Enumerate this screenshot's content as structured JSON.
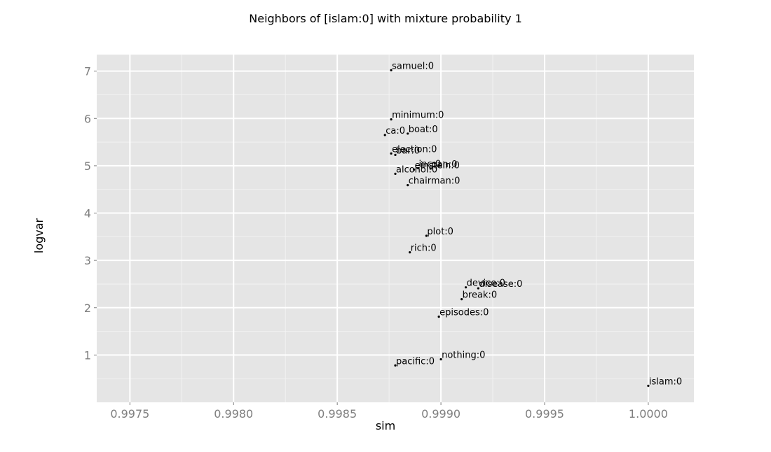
{
  "chart_data": {
    "type": "scatter",
    "title": "Neighbors of [islam:0] with mixture probability 1",
    "xlabel": "sim",
    "ylabel": "logvar",
    "xlim": [
      0.99734,
      1.00022
    ],
    "ylim": [
      0.0,
      7.35
    ],
    "x_ticks": [
      0.9975,
      0.998,
      0.9985,
      0.999,
      0.9995,
      1.0
    ],
    "x_tick_labels": [
      "0.9975",
      "0.9980",
      "0.9985",
      "0.9990",
      "0.9995",
      "1.0000"
    ],
    "y_ticks": [
      1,
      2,
      3,
      4,
      5,
      6,
      7
    ],
    "y_tick_labels": [
      "1",
      "2",
      "3",
      "4",
      "5",
      "6",
      "7"
    ],
    "grid": true,
    "colors": {
      "panel": "#e5e5e5",
      "grid_major": "#ffffff",
      "grid_minor": "#f2f2f2",
      "point": "#000000",
      "tick_text": "#7f7f7f"
    },
    "points": [
      {
        "label": "samuel:0",
        "x": 0.99876,
        "y": 7.02
      },
      {
        "label": "minimum:0",
        "x": 0.99876,
        "y": 5.98
      },
      {
        "label": "ca:0",
        "x": 0.99873,
        "y": 5.65
      },
      {
        "label": "boat:0",
        "x": 0.99884,
        "y": 5.68
      },
      {
        "label": "election:0",
        "x": 0.99876,
        "y": 5.26
      },
      {
        "label": "bar:0",
        "x": 0.99878,
        "y": 5.23
      },
      {
        "label": "inc:0",
        "x": 0.99889,
        "y": 4.95
      },
      {
        "label": "einstein:0",
        "x": 0.99887,
        "y": 4.92
      },
      {
        "label": "pan:0",
        "x": 0.99895,
        "y": 4.94
      },
      {
        "label": "alcohol:0",
        "x": 0.99878,
        "y": 4.83
      },
      {
        "label": "chairman:0",
        "x": 0.99884,
        "y": 4.59
      },
      {
        "label": "plot:0",
        "x": 0.99893,
        "y": 3.52
      },
      {
        "label": "rich:0",
        "x": 0.99885,
        "y": 3.17
      },
      {
        "label": "device:0",
        "x": 0.99912,
        "y": 2.43
      },
      {
        "label": "disease:0",
        "x": 0.99918,
        "y": 2.41
      },
      {
        "label": "break:0",
        "x": 0.9991,
        "y": 2.18
      },
      {
        "label": "episodes:0",
        "x": 0.99899,
        "y": 1.81
      },
      {
        "label": "nothing:0",
        "x": 0.999,
        "y": 0.91
      },
      {
        "label": "pacific:0",
        "x": 0.99878,
        "y": 0.78
      },
      {
        "label": "islam:0",
        "x": 1.0,
        "y": 0.35
      }
    ]
  }
}
